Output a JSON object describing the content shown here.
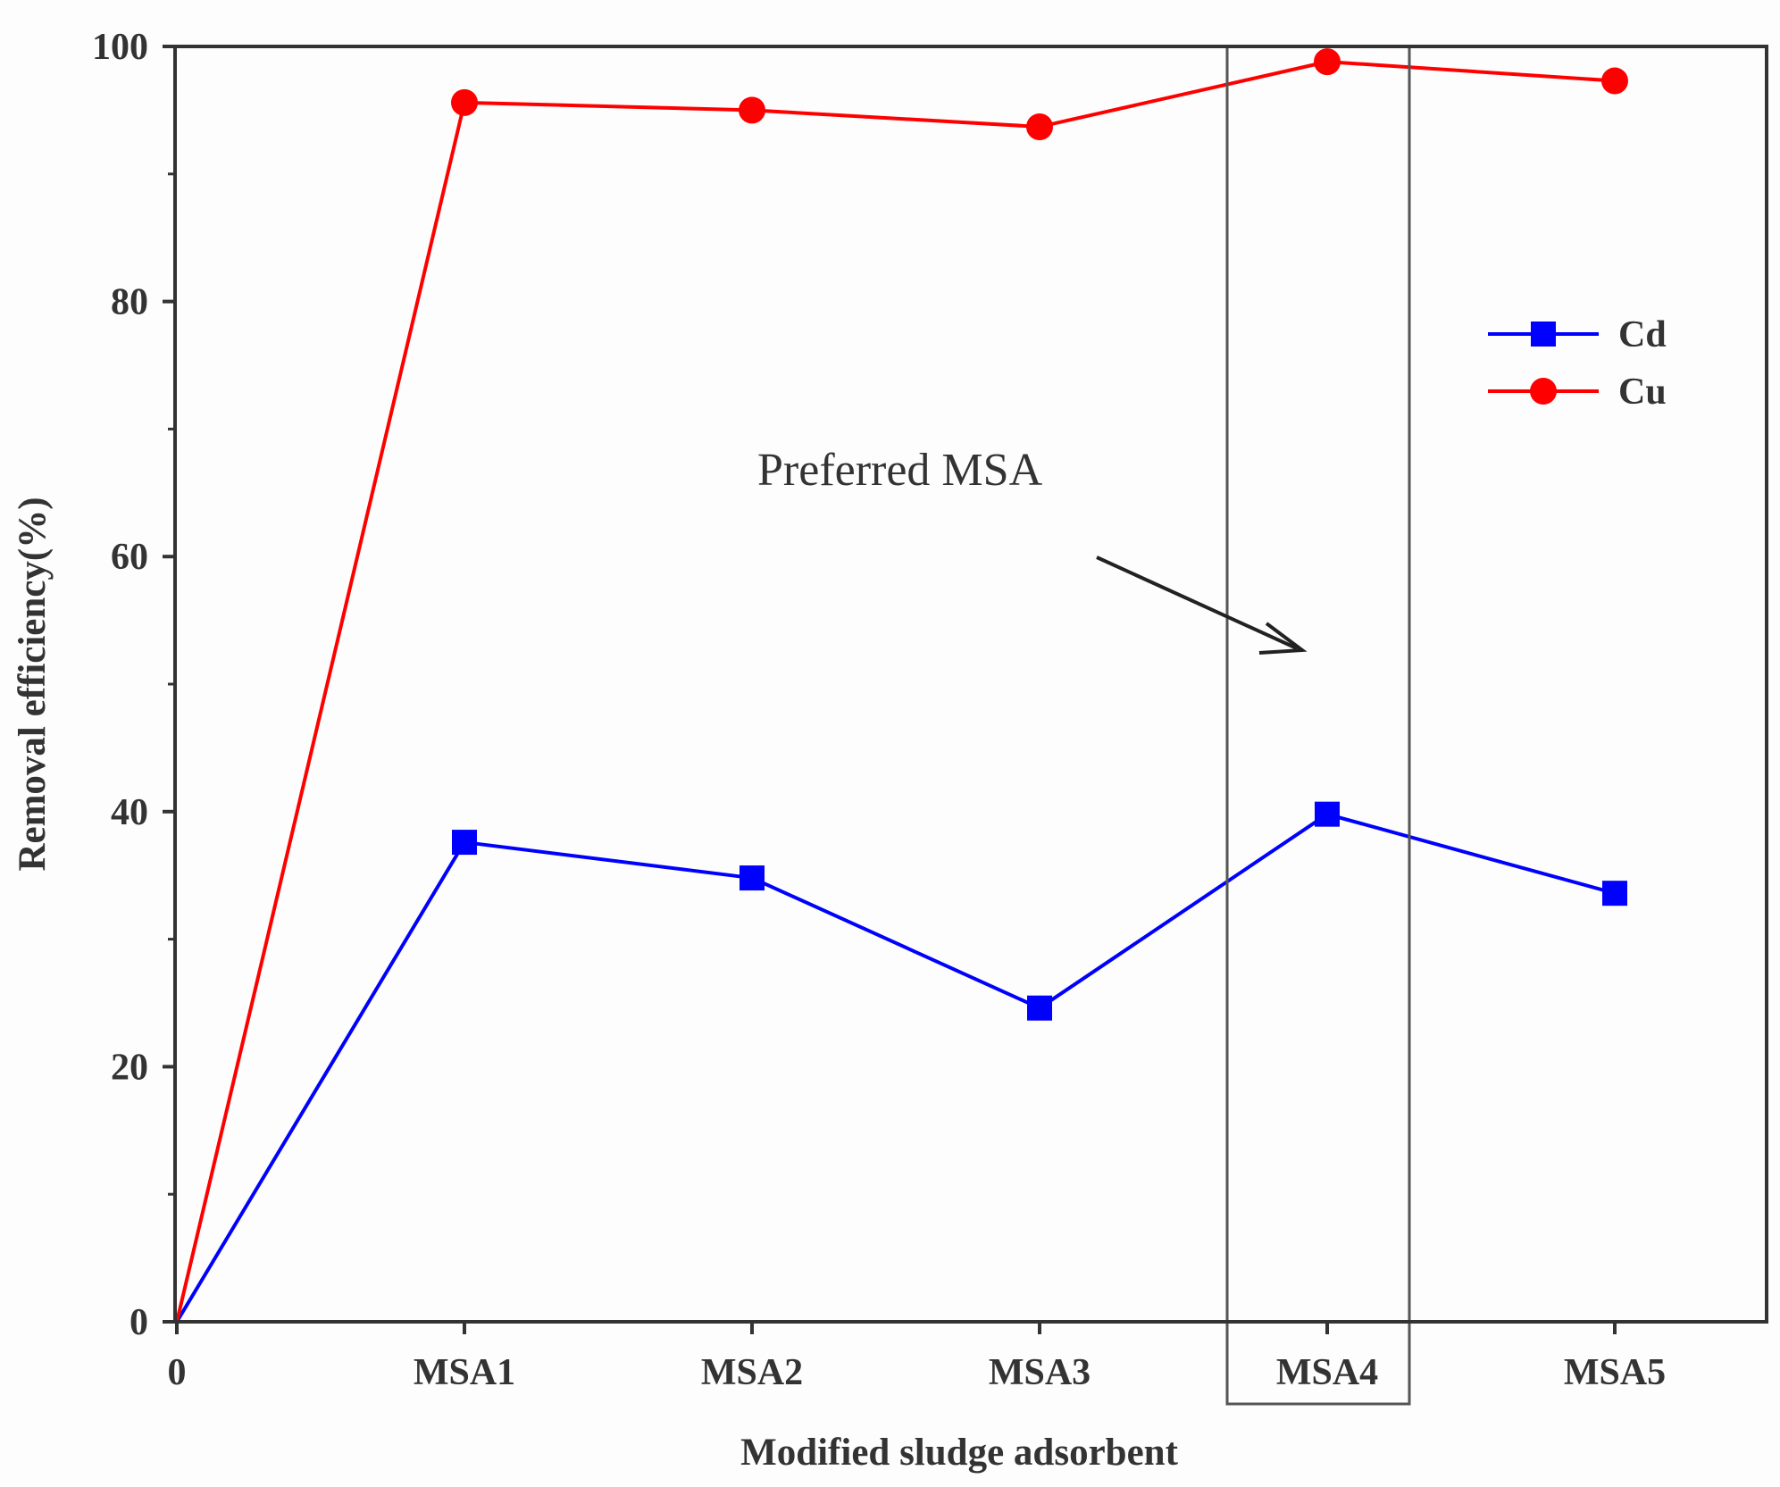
{
  "chart_data": {
    "type": "line",
    "title": "",
    "xlabel": "Modified sludge adsorbent",
    "ylabel": "Removal efficiency(%)",
    "categories": [
      "0",
      "MSA1",
      "MSA2",
      "MSA3",
      "MSA4",
      "MSA5"
    ],
    "ylim": [
      0,
      100
    ],
    "yticks": [
      "0",
      "20",
      "40",
      "60",
      "80",
      "100"
    ],
    "series": [
      {
        "name": "Cd",
        "marker": "square",
        "color": "#0000ff",
        "values": [
          0,
          37.6,
          34.8,
          24.6,
          39.8,
          33.6
        ]
      },
      {
        "name": "Cu",
        "marker": "circle",
        "color": "#ff0000",
        "values": [
          0,
          95.6,
          95.0,
          93.7,
          98.8,
          97.3
        ]
      }
    ],
    "legend_position": "upper-right",
    "annotation": {
      "text": "Preferred MSA",
      "highlight_category": "MSA4"
    }
  }
}
